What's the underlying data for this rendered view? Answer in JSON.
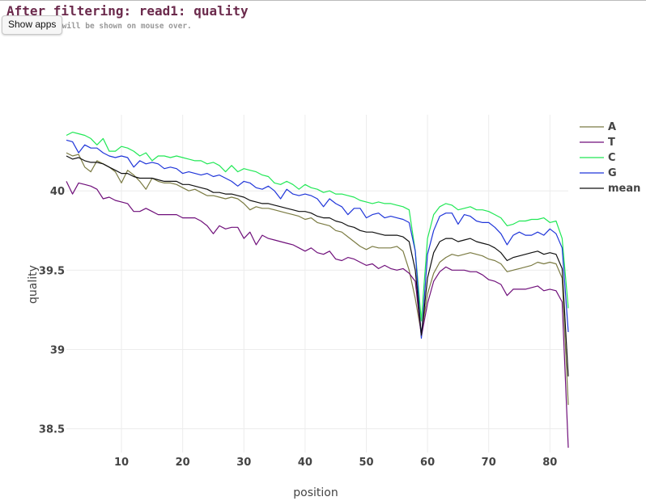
{
  "header": {
    "title": "After filtering: read1: quality",
    "subtitle": "ch position will be shown on mouse over.",
    "show_apps_label": "Show apps"
  },
  "chart_data": {
    "type": "line",
    "xlabel": "position",
    "ylabel": "quality",
    "xlim": [
      1,
      83
    ],
    "ylim": [
      38.35,
      40.48
    ],
    "xticks": [
      10,
      20,
      30,
      40,
      50,
      60,
      70,
      80
    ],
    "yticks": [
      38.5,
      39,
      39.5,
      40
    ],
    "ytick_labels": [
      "38.5",
      "39",
      "39.5",
      "40"
    ],
    "grid": true,
    "legend_position": "right",
    "x": [
      1,
      2,
      3,
      4,
      5,
      6,
      7,
      8,
      9,
      10,
      11,
      12,
      13,
      14,
      15,
      16,
      17,
      18,
      19,
      20,
      21,
      22,
      23,
      24,
      25,
      26,
      27,
      28,
      29,
      30,
      31,
      32,
      33,
      34,
      35,
      36,
      37,
      38,
      39,
      40,
      41,
      42,
      43,
      44,
      45,
      46,
      47,
      48,
      49,
      50,
      51,
      52,
      53,
      54,
      55,
      56,
      57,
      58,
      59,
      60,
      61,
      62,
      63,
      64,
      65,
      66,
      67,
      68,
      69,
      70,
      71,
      72,
      73,
      74,
      75,
      76,
      77,
      78,
      79,
      80,
      81,
      82,
      83
    ],
    "series": [
      {
        "name": "A",
        "color": "#7b7b43",
        "values": [
          40.24,
          40.22,
          40.23,
          40.15,
          40.12,
          40.19,
          40.17,
          40.15,
          40.12,
          40.05,
          40.13,
          40.1,
          40.06,
          40.01,
          40.08,
          40.06,
          40.05,
          40.05,
          40.04,
          40.02,
          40.0,
          40.01,
          39.99,
          39.97,
          39.97,
          39.96,
          39.95,
          39.96,
          39.95,
          39.92,
          39.88,
          39.9,
          39.89,
          39.89,
          39.88,
          39.87,
          39.86,
          39.85,
          39.84,
          39.82,
          39.83,
          39.8,
          39.79,
          39.78,
          39.75,
          39.74,
          39.71,
          39.68,
          39.65,
          39.63,
          39.65,
          39.64,
          39.64,
          39.64,
          39.65,
          39.62,
          39.5,
          39.32,
          39.1,
          39.35,
          39.48,
          39.55,
          39.58,
          39.6,
          39.59,
          39.6,
          39.61,
          39.6,
          39.59,
          39.57,
          39.56,
          39.54,
          39.49,
          39.5,
          39.51,
          39.52,
          39.53,
          39.55,
          39.54,
          39.55,
          39.54,
          39.45,
          38.65
        ]
      },
      {
        "name": "T",
        "color": "#6f0f7a",
        "values": [
          40.06,
          39.98,
          40.05,
          40.04,
          40.03,
          40.01,
          39.95,
          39.96,
          39.94,
          39.93,
          39.92,
          39.87,
          39.87,
          39.89,
          39.87,
          39.85,
          39.85,
          39.85,
          39.85,
          39.83,
          39.83,
          39.83,
          39.81,
          39.78,
          39.73,
          39.78,
          39.76,
          39.77,
          39.77,
          39.7,
          39.74,
          39.66,
          39.72,
          39.7,
          39.69,
          39.68,
          39.67,
          39.66,
          39.64,
          39.62,
          39.64,
          39.61,
          39.6,
          39.62,
          39.57,
          39.56,
          39.58,
          39.57,
          39.55,
          39.53,
          39.54,
          39.51,
          39.53,
          39.51,
          39.5,
          39.51,
          39.48,
          39.43,
          39.08,
          39.29,
          39.43,
          39.49,
          39.52,
          39.5,
          39.5,
          39.5,
          39.49,
          39.49,
          39.47,
          39.44,
          39.43,
          39.41,
          39.34,
          39.38,
          39.38,
          39.38,
          39.39,
          39.4,
          39.37,
          39.38,
          39.37,
          39.3,
          38.38
        ]
      },
      {
        "name": "C",
        "color": "#20e855",
        "values": [
          40.35,
          40.37,
          40.36,
          40.35,
          40.33,
          40.29,
          40.33,
          40.25,
          40.25,
          40.28,
          40.27,
          40.25,
          40.22,
          40.24,
          40.19,
          40.22,
          40.22,
          40.21,
          40.22,
          40.21,
          40.2,
          40.19,
          40.19,
          40.17,
          40.18,
          40.16,
          40.12,
          40.16,
          40.12,
          40.14,
          40.13,
          40.12,
          40.1,
          40.09,
          40.05,
          40.04,
          40.06,
          40.04,
          40.01,
          40.04,
          40.02,
          40.01,
          39.99,
          40.0,
          39.98,
          39.98,
          39.97,
          39.96,
          39.94,
          39.93,
          39.92,
          39.93,
          39.92,
          39.92,
          39.91,
          39.9,
          39.88,
          39.62,
          39.18,
          39.7,
          39.85,
          39.9,
          39.92,
          39.91,
          39.88,
          39.89,
          39.9,
          39.88,
          39.88,
          39.87,
          39.85,
          39.83,
          39.78,
          39.79,
          39.81,
          39.81,
          39.82,
          39.82,
          39.83,
          39.8,
          39.81,
          39.7,
          39.26
        ]
      },
      {
        "name": "G",
        "color": "#1f35d9",
        "values": [
          40.32,
          40.31,
          40.24,
          40.29,
          40.27,
          40.27,
          40.24,
          40.22,
          40.21,
          40.22,
          40.21,
          40.15,
          40.19,
          40.17,
          40.18,
          40.17,
          40.14,
          40.15,
          40.14,
          40.11,
          40.12,
          40.11,
          40.1,
          40.11,
          40.09,
          40.1,
          40.08,
          40.06,
          40.03,
          40.06,
          40.05,
          40.02,
          40.01,
          40.03,
          40.0,
          39.95,
          40.01,
          39.98,
          39.97,
          39.98,
          39.97,
          39.95,
          39.9,
          39.95,
          39.92,
          39.9,
          39.85,
          39.89,
          39.89,
          39.83,
          39.85,
          39.86,
          39.83,
          39.84,
          39.83,
          39.82,
          39.8,
          39.62,
          39.07,
          39.6,
          39.75,
          39.84,
          39.86,
          39.86,
          39.79,
          39.85,
          39.84,
          39.81,
          39.8,
          39.8,
          39.77,
          39.73,
          39.66,
          39.72,
          39.74,
          39.72,
          39.72,
          39.74,
          39.72,
          39.76,
          39.73,
          39.64,
          39.11
        ]
      },
      {
        "name": "mean",
        "color": "#111111",
        "values": [
          40.22,
          40.2,
          40.21,
          40.19,
          40.18,
          40.18,
          40.17,
          40.15,
          40.13,
          40.11,
          40.11,
          40.09,
          40.08,
          40.08,
          40.08,
          40.07,
          40.06,
          40.06,
          40.06,
          40.04,
          40.04,
          40.03,
          40.02,
          40.01,
          39.99,
          39.99,
          39.98,
          39.98,
          39.97,
          39.96,
          39.94,
          39.93,
          39.92,
          39.92,
          39.91,
          39.9,
          39.89,
          39.88,
          39.87,
          39.87,
          39.86,
          39.84,
          39.83,
          39.83,
          39.81,
          39.8,
          39.78,
          39.77,
          39.75,
          39.74,
          39.74,
          39.73,
          39.72,
          39.72,
          39.72,
          39.71,
          39.68,
          39.5,
          39.09,
          39.45,
          39.61,
          39.68,
          39.7,
          39.7,
          39.68,
          39.69,
          39.7,
          39.68,
          39.67,
          39.66,
          39.64,
          39.61,
          39.56,
          39.58,
          39.59,
          39.6,
          39.61,
          39.62,
          39.6,
          39.61,
          39.6,
          39.51,
          38.83
        ]
      }
    ]
  }
}
